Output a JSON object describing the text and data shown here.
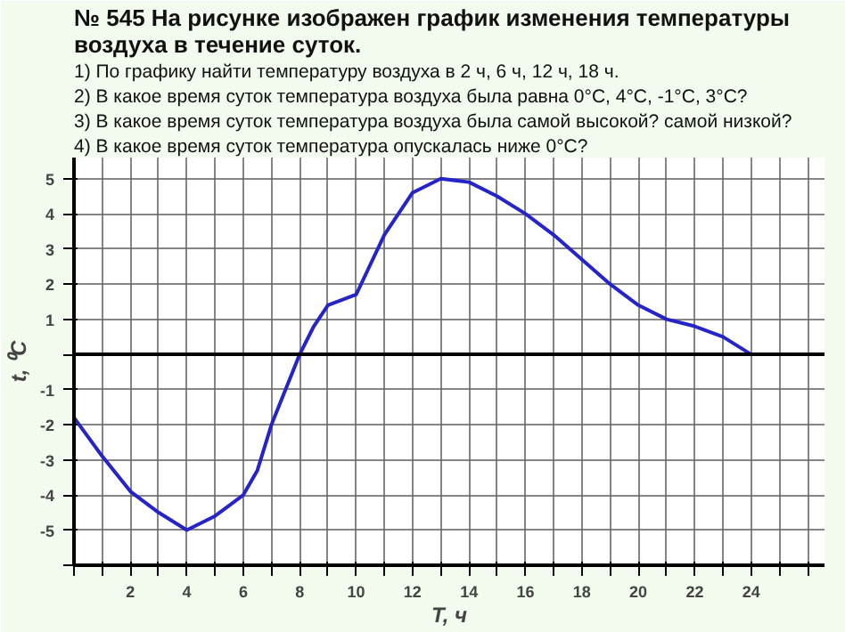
{
  "chart_data": {
    "type": "line",
    "title": "№ 545 На рисунке изображен график изменения температуры воздуха в течение суток.",
    "annotations": [
      "1) По графику найти температуру воздуха в 2 ч, 6 ч, 12 ч, 18 ч.",
      "2) В какое время суток температура воздуха была равна 0°С, 4°С, -1°С, 3°С?",
      "3) В какое время суток температура воздуха была самой высокой? самой низкой?",
      "4) В какое время суток температура опускалась ниже 0°С?"
    ],
    "xlabel": "T, ч",
    "ylabel": "t, ⁰C",
    "x": [
      0,
      1,
      2,
      3,
      4,
      5,
      6,
      6.5,
      7,
      7.5,
      8,
      8.5,
      9,
      10,
      11,
      12,
      13,
      14,
      15,
      16,
      17,
      18,
      19,
      20,
      21,
      22,
      23,
      24
    ],
    "series": [
      {
        "color": "#2424c8",
        "values": [
          -1.8,
          -2.9,
          -3.9,
          -4.5,
          -5,
          -4.6,
          -4,
          -3.3,
          -2,
          -1,
          0,
          0.8,
          1.4,
          1.7,
          3.4,
          4.6,
          5,
          4.9,
          4.5,
          4,
          3.4,
          2.7,
          2,
          1.4,
          1,
          0.8,
          0.5,
          0
        ]
      }
    ],
    "xlim": [
      0,
      26.6
    ],
    "ylim": [
      -6,
      5.6
    ],
    "xticks": [
      {
        "value": 0,
        "label": null
      },
      {
        "value": 1,
        "label": null
      },
      2,
      {
        "value": 3,
        "label": null
      },
      4,
      {
        "value": 5,
        "label": null
      },
      6,
      {
        "value": 7,
        "label": null
      },
      8,
      {
        "value": 9,
        "label": null
      },
      10,
      {
        "value": 11,
        "label": null
      },
      12,
      {
        "value": 13,
        "label": null
      },
      14,
      {
        "value": 15,
        "label": null
      },
      16,
      {
        "value": 17,
        "label": null
      },
      18,
      {
        "value": 19,
        "label": null
      },
      20,
      {
        "value": 21,
        "label": null
      },
      22,
      {
        "value": 23,
        "label": null
      },
      24,
      {
        "value": 25,
        "label": null
      },
      {
        "value": 26,
        "label": null
      }
    ],
    "yticks": [
      {
        "value": -6,
        "label": null
      },
      -5,
      -4,
      -3,
      -2,
      -1,
      {
        "value": 0,
        "label": null
      },
      1,
      2,
      3,
      4,
      5
    ],
    "grid": true,
    "line_style": "solid",
    "marker": "none"
  }
}
